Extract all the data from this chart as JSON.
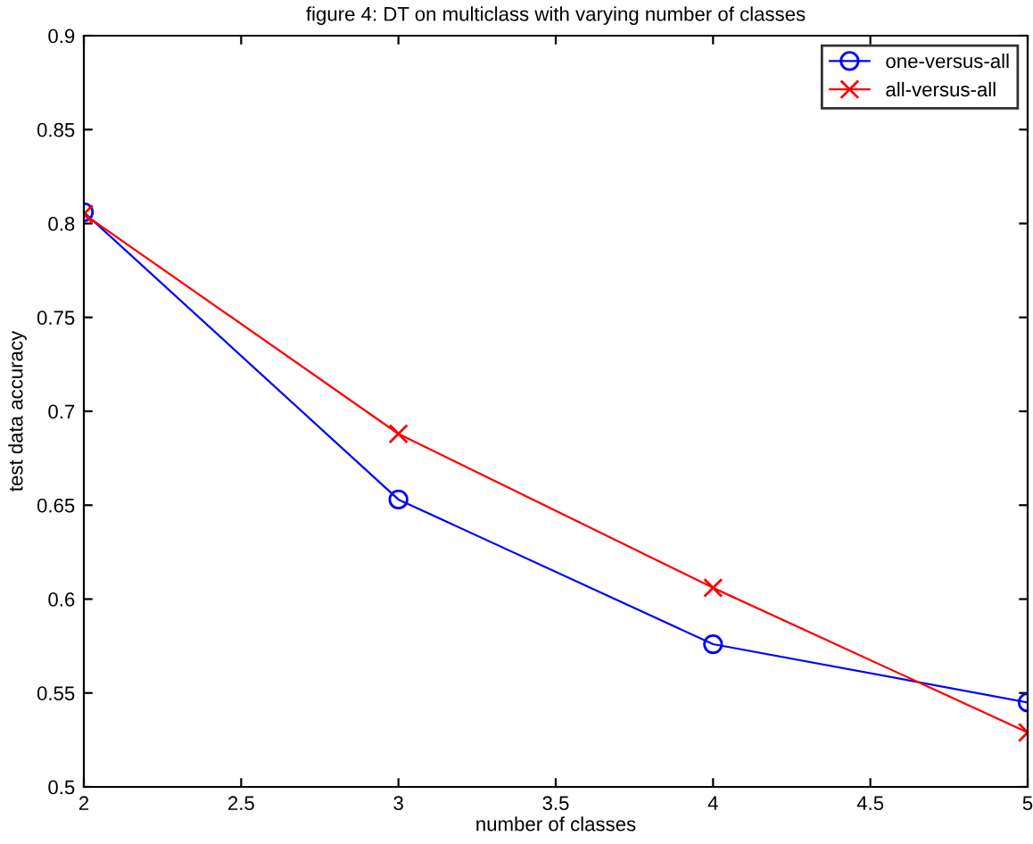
{
  "chart_data": {
    "type": "line",
    "title": "figure 4: DT on multiclass with varying number of classes",
    "xlabel": "number of classes",
    "ylabel": "test data accuracy",
    "x": [
      2,
      3,
      4,
      5
    ],
    "series": [
      {
        "name": "one-versus-all",
        "color": "#0000ff",
        "marker": "circle",
        "values": [
          0.806,
          0.653,
          0.576,
          0.545
        ]
      },
      {
        "name": "all-versus-all",
        "color": "#ff0000",
        "marker": "cross",
        "values": [
          0.805,
          0.688,
          0.606,
          0.529
        ]
      }
    ],
    "xlim": [
      2,
      5
    ],
    "xticks": [
      2,
      2.5,
      3,
      3.5,
      4,
      4.5,
      5
    ],
    "ylim": [
      0.5,
      0.9
    ],
    "yticks": [
      0.5,
      0.55,
      0.6,
      0.65,
      0.7,
      0.75,
      0.8,
      0.85,
      0.9
    ],
    "grid": false,
    "legend": "top right",
    "line_style": "solid"
  }
}
